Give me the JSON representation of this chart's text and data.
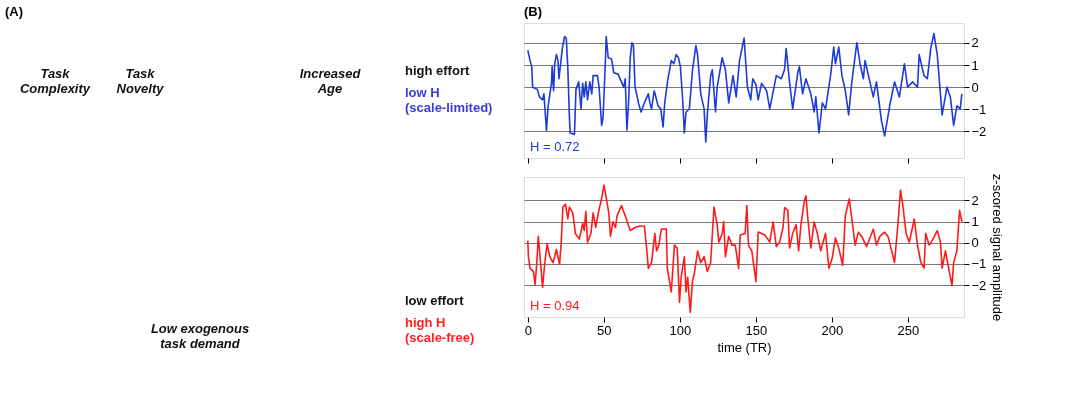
{
  "chart_data": [
    {
      "type": "other",
      "title": "(A)",
      "annotations": [
        "Task\nComplexity",
        "Task\nNovelty",
        "Increased\nAge",
        "Low exogenous\ntask demand",
        "high effort",
        "low H\n(scale-limited)",
        "low effort",
        "high H\n(scale-free)"
      ]
    },
    {
      "type": "line",
      "title": "(B)",
      "xlim": [
        -2.5,
        287
      ],
      "xticks": [
        0,
        50,
        100,
        150,
        200,
        250
      ],
      "ylim": [
        -3.2,
        2.9
      ],
      "yticks": [
        -2,
        -1,
        0,
        1,
        2
      ],
      "grid": "y",
      "tick_labels": "y",
      "line_style": "solid",
      "annotations": [
        "H = 0.72"
      ],
      "series": [
        {
          "color": "#1c3bd9",
          "x": [
            0,
            1.5,
            2.6,
            3.2,
            6.3,
            7.6,
            9.7,
            10.6,
            12.3,
            13.4,
            15.6,
            16,
            17,
            17.7,
            18.8,
            19.9,
            20.5,
            21.4,
            22.7,
            24.2,
            25.3,
            26.3,
            27.4,
            27.9,
            30.7,
            31.7,
            33.5,
            35,
            36.1,
            37.1,
            38.2,
            39.3,
            40.8,
            42.1,
            43,
            45.8,
            46.9,
            48.6,
            49.5,
            50.8,
            51.6,
            52.9,
            55.1,
            56.6,
            59.4,
            63.1,
            64.1,
            65.2,
            66.3,
            67.4,
            68.5,
            69.5,
            70.6,
            72.8,
            74.5,
            76.7,
            79.3,
            80.3,
            81.4,
            83.2,
            85.7,
            87.5,
            89,
            90.1,
            92.2,
            94.4,
            96.1,
            97.6,
            99.1,
            100.4,
            101.9,
            103,
            104.1,
            106.3,
            108.4,
            110.6,
            111.7,
            113.8,
            116,
            117.1,
            118.1,
            120.3,
            121.4,
            123.5,
            124.6,
            127.9,
            130,
            132.2,
            135,
            137.1,
            139.3,
            142.3,
            144.5,
            146.7,
            148,
            150.1,
            151.6,
            153.8,
            157.1,
            159.2,
            163.5,
            166.8,
            168.9,
            170,
            172.2,
            174.3,
            177.6,
            178.7,
            180.8,
            183,
            186.2,
            188.4,
            189.5,
            191.6,
            193.8,
            195.9,
            199.2,
            201.3,
            202.4,
            204.6,
            206.7,
            208.9,
            211.1,
            213.2,
            216.5,
            218.6,
            220.8,
            221.9,
            225.1,
            227.3,
            229.4,
            232.7,
            234.8,
            238.1,
            241.3,
            244.5,
            247.8,
            249.9,
            253.2,
            256.4,
            257.5,
            260.7,
            262.9,
            265.1,
            267.2,
            269.4,
            272.6,
            275.8,
            278,
            280.2,
            282.3,
            284.5,
            285.6
          ],
          "values": [
            1.67,
            1.2,
            0.93,
            0.0,
            -0.1,
            -0.44,
            -0.57,
            -0.3,
            -1.96,
            -0.84,
            0.18,
            0.93,
            -0.16,
            1.06,
            1.47,
            1.2,
            0.38,
            0.93,
            1.74,
            2.29,
            2.22,
            0.93,
            -1.39,
            -2.07,
            -2.14,
            -0.1,
            0.24,
            -0.98,
            0.18,
            -0.44,
            0.24,
            -0.57,
            0.24,
            -0.3,
            0.52,
            0.52,
            0.0,
            -1.73,
            -1.39,
            0.72,
            2.29,
            1.33,
            1.27,
            0.65,
            0.59,
            0.0,
            0.38,
            -1.93,
            -0.71,
            1.33,
            2.01,
            1.88,
            0.0,
            -0.71,
            -1.12,
            -0.71,
            -0.3,
            -0.71,
            -0.98,
            -0.16,
            -0.84,
            -0.98,
            -1.8,
            -0.71,
            0.38,
            1.2,
            1.06,
            1.47,
            1.33,
            0.93,
            -0.57,
            -2.07,
            -1.12,
            -0.98,
            0.79,
            1.88,
            1.47,
            -0.3,
            -0.98,
            -2.48,
            -1.25,
            0.52,
            0.79,
            -1.12,
            0.0,
            1.33,
            0.79,
            -0.71,
            0.52,
            -0.44,
            1.2,
            2.22,
            0.0,
            -0.57,
            0.38,
            0.11,
            -0.57,
            0.18,
            -0.16,
            -0.98,
            0.52,
            0.38,
            0.79,
            1.74,
            0.24,
            -0.98,
            0.65,
            0.93,
            -0.3,
            0.38,
            -0.3,
            -1.12,
            -0.44,
            -2.07,
            -0.71,
            -0.98,
            0.52,
            1.81,
            1.06,
            1.81,
            0.52,
            -0.16,
            -1.25,
            0.24,
            2.01,
            1.06,
            0.38,
            1.2,
            0.24,
            -0.44,
            0.24,
            -1.52,
            -2.2,
            -0.84,
            0.24,
            -0.44,
            1.06,
            0.0,
            0.24,
            0.0,
            1.47,
            0.52,
            0.38,
            1.74,
            2.42,
            1.47,
            -1.25,
            0.0,
            -0.44,
            -1.73,
            -0.84,
            -0.98,
            -0.3
          ]
        }
      ]
    },
    {
      "type": "line",
      "xlabel": "time (TR)",
      "ylabel": "z-scored signal amplitude",
      "xlim": [
        -2.5,
        287
      ],
      "xticks": [
        0,
        50,
        100,
        150,
        200,
        250
      ],
      "ylim": [
        -3.5,
        3.1
      ],
      "yticks": [
        -2,
        -1,
        0,
        1,
        2
      ],
      "grid": "y",
      "line_style": "solid",
      "annotations": [
        "H = 0.94"
      ],
      "series": [
        {
          "color": "#ff1a1a",
          "x": [
            0,
            0.4,
            1.5,
            3.7,
            4.8,
            5.8,
            6.9,
            8.4,
            9.7,
            11.2,
            12.7,
            14.5,
            16.6,
            18.8,
            20.9,
            22,
            23.1,
            24.8,
            26.3,
            27.4,
            29.6,
            31.3,
            33.9,
            36.1,
            37.1,
            38.2,
            39.3,
            41.5,
            43,
            44.7,
            46.4,
            48.6,
            50.1,
            51.6,
            53.3,
            54.4,
            56,
            57.7,
            58.7,
            61.6,
            64.1,
            67.4,
            70.6,
            73.9,
            76.7,
            78.2,
            79.3,
            81.4,
            83.6,
            84.7,
            86.2,
            87.9,
            91.1,
            91.8,
            94.4,
            96.5,
            98.3,
            99.8,
            100.9,
            103,
            104.1,
            105.2,
            106.9,
            108.4,
            109.5,
            111.7,
            113.8,
            116,
            118.1,
            120.3,
            122.5,
            124.6,
            125.7,
            127.9,
            128.9,
            130,
            132.2,
            134.3,
            136.5,
            138.7,
            139.8,
            143,
            144.1,
            145.2,
            147.4,
            150.1,
            151.6,
            153.8,
            155.9,
            159.2,
            161.4,
            163.5,
            165.7,
            167.9,
            169,
            171.1,
            172.2,
            174.3,
            176.5,
            178.2,
            179.7,
            181.9,
            183,
            184.1,
            186.2,
            188.4,
            190.5,
            192.7,
            195.9,
            198.1,
            200.3,
            202.4,
            204.6,
            207.2,
            208.9,
            211.5,
            213.2,
            215.4,
            217.5,
            219.7,
            222.9,
            227.3,
            229.4,
            231.6,
            234.8,
            237,
            241.3,
            243.5,
            245.2,
            246.7,
            248.9,
            251,
            254.3,
            256.4,
            258.6,
            260.7,
            261.8,
            264,
            266.1,
            269.4,
            271.5,
            272.6,
            274.8,
            275.8,
            277.6,
            279.1,
            280.2,
            282.3,
            284.1,
            285.6
          ],
          "values": [
            0.1,
            -0.66,
            -1.21,
            -1.35,
            -1.97,
            -1.08,
            0.3,
            -0.94,
            -2.11,
            -0.94,
            -0.04,
            -0.66,
            -0.94,
            -0.32,
            -1.01,
            0.03,
            1.68,
            1.82,
            1.13,
            1.68,
            1.41,
            0.44,
            0.17,
            0.92,
            0.58,
            1.48,
            0.03,
            0.44,
            1.41,
            0.72,
            1.41,
            2.1,
            2.72,
            2.1,
            1.41,
            0.3,
            0.99,
            0.72,
            1.27,
            1.75,
            1.27,
            0.58,
            0.72,
            0.79,
            0.79,
            -0.25,
            -1.21,
            -0.94,
            0.44,
            -0.39,
            -0.11,
            0.65,
            0.65,
            -1.21,
            -2.32,
            -0.11,
            -0.25,
            -2.8,
            -1.63,
            -0.66,
            -2.32,
            -1.63,
            -3.28,
            -1.77,
            -1.49,
            -0.39,
            -0.94,
            -0.66,
            -1.35,
            -0.94,
            1.68,
            0.86,
            0.03,
            0.44,
            0.99,
            -0.66,
            0.3,
            -0.11,
            -0.11,
            -1.21,
            0.37,
            0.44,
            1.75,
            -0.11,
            -0.39,
            -1.83,
            0.51,
            0.44,
            0.37,
            0.03,
            0.98,
            -0.18,
            0.03,
            0.71,
            1.66,
            1.53,
            -0.25,
            0.44,
            0.85,
            -0.38,
            0.85,
            1.94,
            2.21,
            1.26,
            -0.25,
            0.98,
            0.44,
            -0.38,
            0.44,
            -1.2,
            -0.72,
            0.23,
            -0.25,
            -1.06,
            1.26,
            2.07,
            1.12,
            -0.11,
            0.5,
            0.3,
            -0.18,
            0.64,
            -0.11,
            0.3,
            0.5,
            0.3,
            -0.93,
            0.85,
            2.48,
            1.8,
            0.44,
            0.03,
            1.12,
            -0.11,
            -0.93,
            -1.2,
            0.44,
            -0.11,
            0.1,
            0.57,
            0.03,
            -1.2,
            -0.38,
            -0.79,
            -1.47,
            -2.02,
            -0.93,
            -0.38,
            1.53,
            0.98
          ]
        }
      ]
    }
  ]
}
